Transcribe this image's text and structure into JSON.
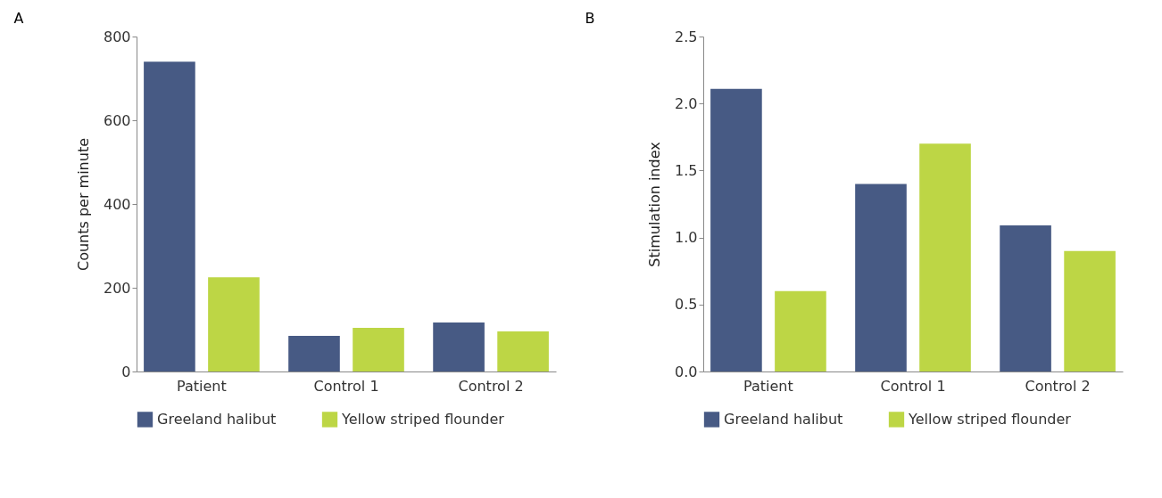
{
  "chart_data": [
    {
      "type": "bar",
      "title": "A",
      "ylabel": "Counts per minute",
      "categories": [
        "Patient",
        "Control 1",
        "Control 2"
      ],
      "series": [
        {
          "name": "Greeland halibut",
          "color": "#475a84",
          "values": [
            740,
            85,
            117
          ]
        },
        {
          "name": "Yellow striped flounder",
          "color": "#bdd645",
          "values": [
            225,
            104,
            96
          ]
        }
      ],
      "ylim": [
        0,
        800
      ],
      "yticks": [
        0,
        200,
        400,
        600,
        800
      ],
      "grid": false,
      "legend": "bottom"
    },
    {
      "type": "bar",
      "title": "B",
      "ylabel": "Stimulation index",
      "categories": [
        "Patient",
        "Control 1",
        "Control 2"
      ],
      "series": [
        {
          "name": "Greeland halibut",
          "color": "#475a84",
          "values": [
            2.11,
            1.4,
            1.09
          ]
        },
        {
          "name": "Yellow striped flounder",
          "color": "#bdd645",
          "values": [
            0.6,
            1.7,
            0.9
          ]
        }
      ],
      "ylim": [
        0,
        2.5
      ],
      "yticks": [
        {
          "value": 0,
          "label": "0.0"
        },
        {
          "value": 0.5,
          "label": "0.5"
        },
        {
          "value": 1,
          "label": "1.0"
        },
        {
          "value": 1.5,
          "label": "1.5"
        },
        {
          "value": 2,
          "label": "2.0"
        },
        {
          "value": 2.5,
          "label": "2.5"
        }
      ],
      "grid": false,
      "legend": "bottom"
    }
  ]
}
